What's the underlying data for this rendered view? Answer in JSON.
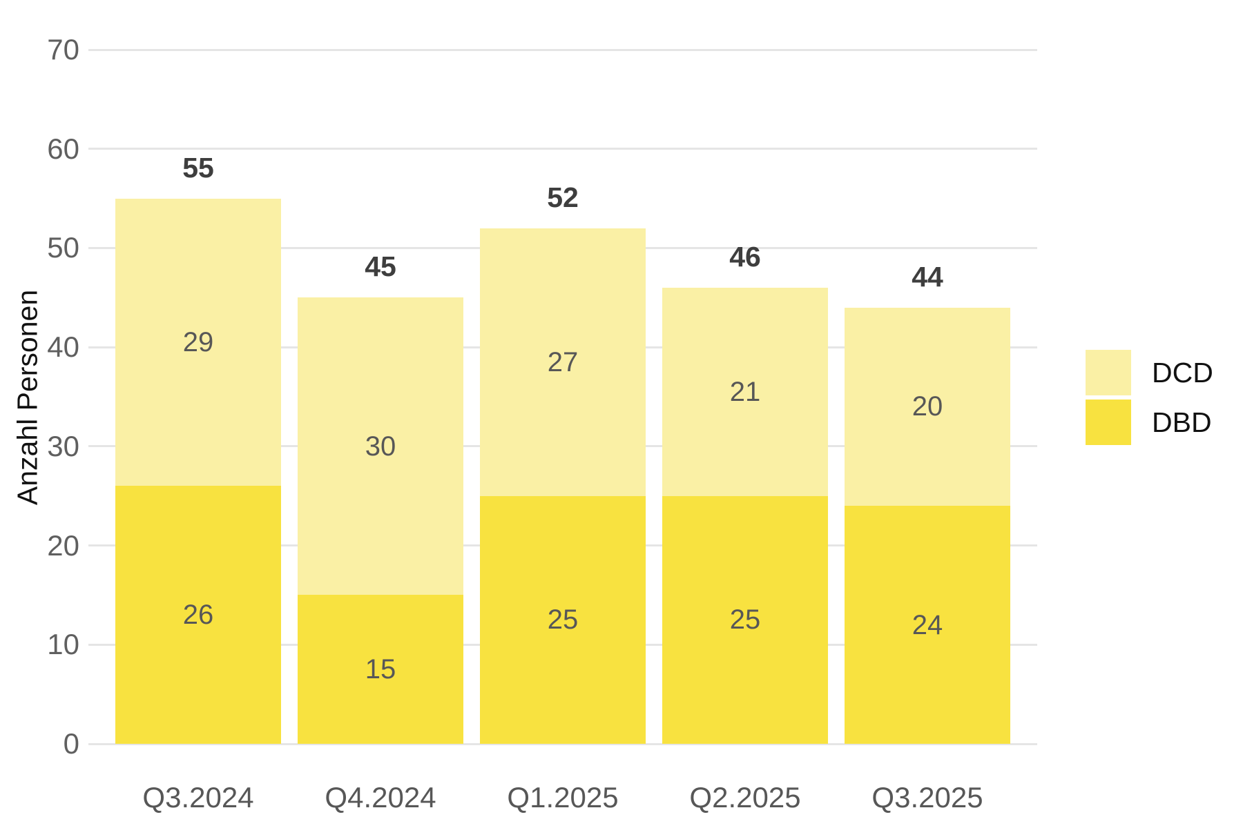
{
  "chart_data": {
    "type": "bar",
    "stacked": true,
    "title": "",
    "xlabel": "",
    "ylabel": "Anzahl Personen",
    "categories": [
      "Q3.2024",
      "Q4.2024",
      "Q1.2025",
      "Q2.2025",
      "Q3.2025"
    ],
    "series": [
      {
        "name": "DBD",
        "color": "#F8E240",
        "values": [
          26,
          15,
          25,
          25,
          24
        ]
      },
      {
        "name": "DCD",
        "color": "#FAF0A5",
        "values": [
          29,
          30,
          27,
          21,
          20
        ]
      }
    ],
    "totals": [
      55,
      45,
      52,
      46,
      44
    ],
    "ylim": [
      0,
      70
    ],
    "yticks": [
      0,
      10,
      20,
      30,
      40,
      50,
      60,
      70
    ],
    "grid": "horizontal",
    "legend": {
      "position": "right",
      "entries": [
        {
          "label": "DCD",
          "color": "#FAF0A5"
        },
        {
          "label": "DBD",
          "color": "#F8E240"
        }
      ]
    },
    "colors": {
      "gridline": "#E5E5E5",
      "tick_text": "#5F5F5F",
      "category_text": "#575757",
      "segment_label_text": "#575757",
      "total_label_text": "#3E3E3E",
      "legend_text": "#111111",
      "axis_title_text": "#111111",
      "background": "#FFFFFF"
    }
  }
}
